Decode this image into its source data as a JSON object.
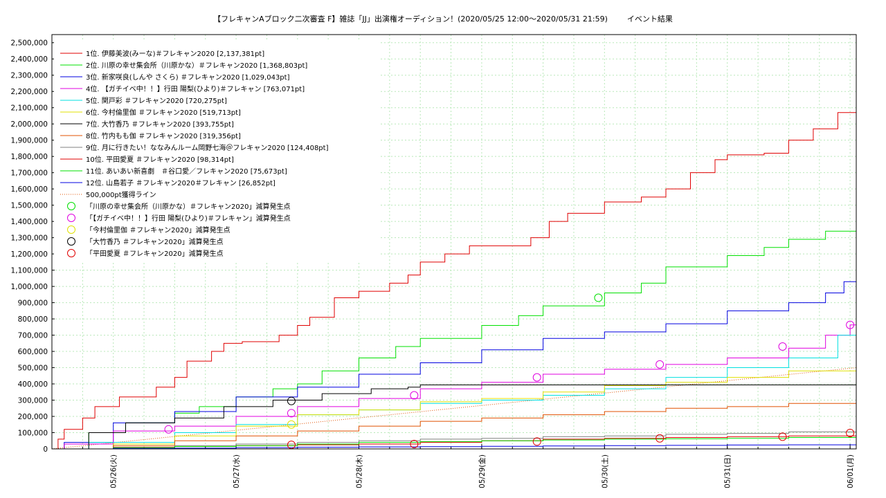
{
  "title": "【フレキャンAブロック二次審査 F】雑誌「JJ」出演権オーディション！(2020/05/25 12:00〜2020/05/31 21:59)        イベント結果",
  "chart_data": {
    "type": "line",
    "title": "【フレキャンAブロック二次審査 F】雑誌「JJ」出演権オーディション！(2020/05/25 12:00〜2020/05/31 21:59)        イベント結果",
    "xlabel": "",
    "ylabel": "",
    "xlim": [
      0,
      6.55
    ],
    "ylim": [
      0,
      2550000
    ],
    "grid": true,
    "legend_position": "top-left",
    "x_tick_labels": [
      "05/26(火)",
      "05/27(水)",
      "05/28(木)",
      "05/29(金)",
      "05/30(土)",
      "05/31(日)",
      "06/01(月)"
    ],
    "x_tick_positions": [
      0.5,
      1.5,
      2.5,
      3.5,
      4.5,
      5.5,
      6.5
    ],
    "y_ticks": [
      0,
      100000,
      200000,
      300000,
      400000,
      500000,
      600000,
      700000,
      800000,
      900000,
      1000000,
      1100000,
      1200000,
      1300000,
      1400000,
      1500000,
      1600000,
      1700000,
      1800000,
      1900000,
      2000000,
      2100000,
      2200000,
      2300000,
      2400000,
      2500000
    ],
    "y_tick_labels": [
      "0",
      "100,000",
      "200,000",
      "300,000",
      "400,000",
      "500,000",
      "600,000",
      "700,000",
      "800,000",
      "900,000",
      "1,000,000",
      "1,100,000",
      "1,200,000",
      "1,300,000",
      "1,400,000",
      "1,500,000",
      "1,600,000",
      "1,700,000",
      "1,800,000",
      "1,900,000",
      "2,000,000",
      "2,100,000",
      "2,200,000",
      "2,300,000",
      "2,400,000",
      "2,500,000"
    ],
    "series": [
      {
        "name": "1位. 伊藤美波(みーな)＃フレキャン2020 [2,137,381pt]",
        "color": "#e00000",
        "x": [
          0,
          0.05,
          0.1,
          0.25,
          0.35,
          0.55,
          0.85,
          1.0,
          1.1,
          1.3,
          1.4,
          1.55,
          1.85,
          2.0,
          2.1,
          2.3,
          2.5,
          2.75,
          2.9,
          3.0,
          3.2,
          3.4,
          3.5,
          3.9,
          4.05,
          4.2,
          4.5,
          4.8,
          5.0,
          5.2,
          5.4,
          5.5,
          5.8,
          6.0,
          6.2,
          6.4,
          6.55
        ],
        "y": [
          0,
          60000,
          120000,
          190000,
          260000,
          320000,
          380000,
          440000,
          540000,
          600000,
          650000,
          660000,
          700000,
          760000,
          810000,
          930000,
          970000,
          1020000,
          1070000,
          1150000,
          1200000,
          1250000,
          1250000,
          1300000,
          1400000,
          1450000,
          1520000,
          1550000,
          1600000,
          1700000,
          1780000,
          1810000,
          1820000,
          1900000,
          1970000,
          2070000,
          2137381
        ]
      },
      {
        "name": "2位. 川原の幸せ集会所（川原かな）＃フレキャン2020 [1,368,803pt]",
        "color": "#00e000",
        "x": [
          0,
          0.1,
          0.3,
          0.6,
          1.0,
          1.2,
          1.5,
          1.8,
          2.0,
          2.2,
          2.5,
          2.8,
          3.0,
          3.5,
          3.8,
          4.0,
          4.5,
          4.8,
          5.0,
          5.5,
          5.8,
          6.0,
          6.3,
          6.55
        ],
        "y": [
          0,
          30000,
          100000,
          160000,
          220000,
          260000,
          320000,
          370000,
          400000,
          480000,
          560000,
          630000,
          680000,
          760000,
          820000,
          880000,
          960000,
          1020000,
          1120000,
          1190000,
          1240000,
          1290000,
          1340000,
          1368803
        ]
      },
      {
        "name": "3位. 新家咲良(しんや さくら) ＃フレキャン2020 [1,029,043pt]",
        "color": "#0000e0",
        "x": [
          0,
          0.1,
          0.5,
          1.0,
          1.5,
          2.0,
          2.5,
          3.0,
          3.5,
          4.0,
          4.5,
          5.0,
          5.5,
          6.0,
          6.3,
          6.45,
          6.55
        ],
        "y": [
          0,
          40000,
          160000,
          230000,
          320000,
          380000,
          460000,
          530000,
          610000,
          680000,
          720000,
          770000,
          850000,
          900000,
          960000,
          1029043,
          1029043
        ]
      },
      {
        "name": "4位. 【ガチイベ中！！】行田 陽梨(ひより)＃フレキャン [763,071pt]",
        "color": "#e000e0",
        "x": [
          0,
          0.1,
          0.5,
          1.0,
          1.5,
          2.0,
          2.5,
          3.0,
          3.5,
          4.0,
          4.5,
          5.0,
          5.5,
          6.0,
          6.3,
          6.5,
          6.55
        ],
        "y": [
          0,
          30000,
          110000,
          140000,
          200000,
          260000,
          310000,
          370000,
          410000,
          460000,
          490000,
          520000,
          560000,
          620000,
          700000,
          763071,
          763071
        ]
      },
      {
        "name": "5位. 関戸彩 ＃フレキャン2020 [720,275pt]",
        "color": "#00e0e0",
        "x": [
          0,
          0.3,
          1.0,
          1.5,
          2.0,
          2.5,
          3.0,
          3.5,
          4.0,
          4.5,
          5.0,
          5.5,
          6.0,
          6.4,
          6.55
        ],
        "y": [
          0,
          40000,
          100000,
          150000,
          210000,
          240000,
          280000,
          300000,
          330000,
          370000,
          440000,
          500000,
          560000,
          700000,
          720275
        ]
      },
      {
        "name": "6位. 今村倫里伽 ＃フレキャン2020 [519,713pt]",
        "color": "#e0e000",
        "x": [
          0,
          0.5,
          1.0,
          1.5,
          2.0,
          2.5,
          3.0,
          3.5,
          4.0,
          4.5,
          5.0,
          5.5,
          6.0,
          6.55
        ],
        "y": [
          0,
          30000,
          80000,
          140000,
          210000,
          240000,
          290000,
          310000,
          350000,
          390000,
          410000,
          440000,
          480000,
          519713
        ]
      },
      {
        "name": "7位. 大竹香乃 ＃フレキャン2020 [393,755pt]",
        "color": "#000000",
        "x": [
          0,
          0.3,
          0.6,
          1.0,
          1.4,
          1.8,
          2.2,
          2.6,
          2.9,
          3.0,
          3.5,
          4.0,
          4.5,
          5.0,
          5.5,
          6.0,
          6.55
        ],
        "y": [
          0,
          100000,
          160000,
          190000,
          260000,
          300000,
          340000,
          370000,
          380000,
          393755,
          393755,
          393755,
          393755,
          393755,
          393755,
          393755,
          393755
        ]
      },
      {
        "name": "8位. 竹内もも伽 ＃フレキャン2020 [319,356pt]",
        "color": "#e05000",
        "x": [
          0,
          0.5,
          1.0,
          1.5,
          2.0,
          2.5,
          3.0,
          3.5,
          4.0,
          4.5,
          5.0,
          5.5,
          6.0,
          6.55
        ],
        "y": [
          0,
          20000,
          50000,
          80000,
          110000,
          140000,
          170000,
          190000,
          210000,
          230000,
          250000,
          260000,
          280000,
          319356
        ]
      },
      {
        "name": "9位. 月に行きたい！ななみんルーム岡野七海＠フレキャン2020 [124,408pt]",
        "color": "#808080",
        "x": [
          0,
          0.5,
          1.0,
          1.5,
          2.0,
          2.5,
          3.0,
          3.5,
          4.0,
          4.5,
          5.0,
          5.5,
          6.0,
          6.55
        ],
        "y": [
          0,
          10000,
          20000,
          30000,
          40000,
          50000,
          60000,
          65000,
          75000,
          80000,
          90000,
          95000,
          105000,
          124408
        ]
      },
      {
        "name": "10位. 平田愛夏 ＃フレキャン2020 [98,314pt]",
        "color": "#e00000",
        "x": [
          0,
          0.5,
          1.0,
          1.5,
          2.0,
          2.5,
          3.0,
          3.5,
          4.0,
          4.5,
          5.0,
          5.5,
          6.0,
          6.55
        ],
        "y": [
          0,
          10000,
          15000,
          20000,
          25000,
          30000,
          40000,
          50000,
          60000,
          65000,
          70000,
          75000,
          80000,
          98314
        ]
      },
      {
        "name": "11位. あいあい新喜劇　＃谷口愛／フレキャン2020 [75,673pt]",
        "color": "#00e000",
        "x": [
          0,
          0.5,
          1.0,
          1.5,
          2.0,
          2.5,
          3.0,
          3.5,
          4.0,
          4.5,
          5.0,
          5.5,
          6.0,
          6.55
        ],
        "y": [
          0,
          8000,
          15000,
          20000,
          30000,
          40000,
          45000,
          50000,
          55000,
          60000,
          62000,
          65000,
          70000,
          75673
        ]
      },
      {
        "name": "12位. 山島若子 ＃フレキャン2020＃フレキャン [26,852pt]",
        "color": "#0000e0",
        "x": [
          0,
          0.5,
          1.0,
          1.5,
          2.0,
          2.5,
          3.0,
          3.5,
          4.0,
          4.5,
          5.0,
          5.5,
          6.0,
          6.55
        ],
        "y": [
          0,
          3000,
          5000,
          8000,
          10000,
          12000,
          14000,
          16000,
          18000,
          20000,
          22000,
          24000,
          25000,
          26852
        ]
      }
    ],
    "reference_line": {
      "name": "500,000pt獲得ライン",
      "color": "#e05000",
      "x": [
        0,
        6.55
      ],
      "y": [
        0,
        500000
      ]
    },
    "markers": [
      {
        "name": "「川原の幸せ集会所（川原かな）＃フレキャン2020」減算発生点",
        "color": "#00e000",
        "points": [
          [
            4.45,
            930000
          ]
        ]
      },
      {
        "name": "「【ガチイベ中！！】行田 陽梨(ひより)＃フレキャン」減算発生点",
        "color": "#e000e0",
        "points": [
          [
            0.95,
            120000
          ],
          [
            1.95,
            220000
          ],
          [
            2.95,
            330000
          ],
          [
            3.95,
            440000
          ],
          [
            4.95,
            520000
          ],
          [
            5.95,
            630000
          ],
          [
            6.5,
            763000
          ]
        ]
      },
      {
        "name": "「今村倫里伽 ＃フレキャン2020」減算発生点",
        "color": "#e0e000",
        "points": [
          [
            1.95,
            150000
          ]
        ]
      },
      {
        "name": "「大竹香乃 ＃フレキャン2020」減算発生点",
        "color": "#000000",
        "points": [
          [
            1.95,
            295000
          ]
        ]
      },
      {
        "name": "「平田愛夏 ＃フレキャン2020」減算発生点",
        "color": "#e00000",
        "points": [
          [
            1.95,
            25000
          ],
          [
            2.95,
            30000
          ],
          [
            3.95,
            45000
          ],
          [
            4.95,
            65000
          ],
          [
            5.95,
            75000
          ],
          [
            6.5,
            98000
          ]
        ]
      }
    ]
  }
}
